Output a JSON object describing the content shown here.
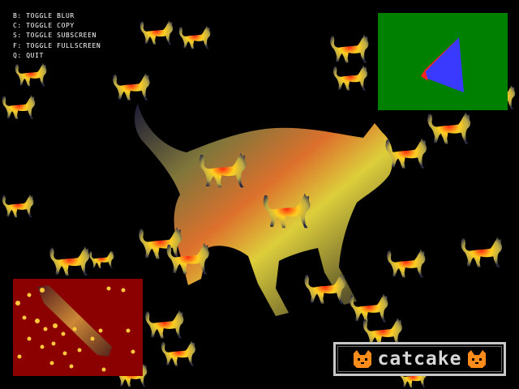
{
  "help": {
    "lines": [
      "B: TOGGLE BLUR",
      "C: TOGGLE COPY",
      "S: TOGGLE SUBSCREEN",
      "F: TOGGLE FULLSCREEN",
      "Q: QUIT"
    ]
  },
  "logo": {
    "text": "catcake",
    "icon": "cat-face-icon"
  },
  "subscreen": {
    "background": "#008000",
    "icon": "triangle-icon"
  },
  "copy_view": {
    "background": "#8b0000"
  },
  "colors": {
    "background": "#000000",
    "cat_hot": "#ff3a1a",
    "cat_warm": "#ffd21a",
    "cat_body": "#c8b84a",
    "cat_shadow": "#2c2c4a",
    "triangle_blue": "#3a3aff",
    "triangle_red": "#ff2020"
  }
}
